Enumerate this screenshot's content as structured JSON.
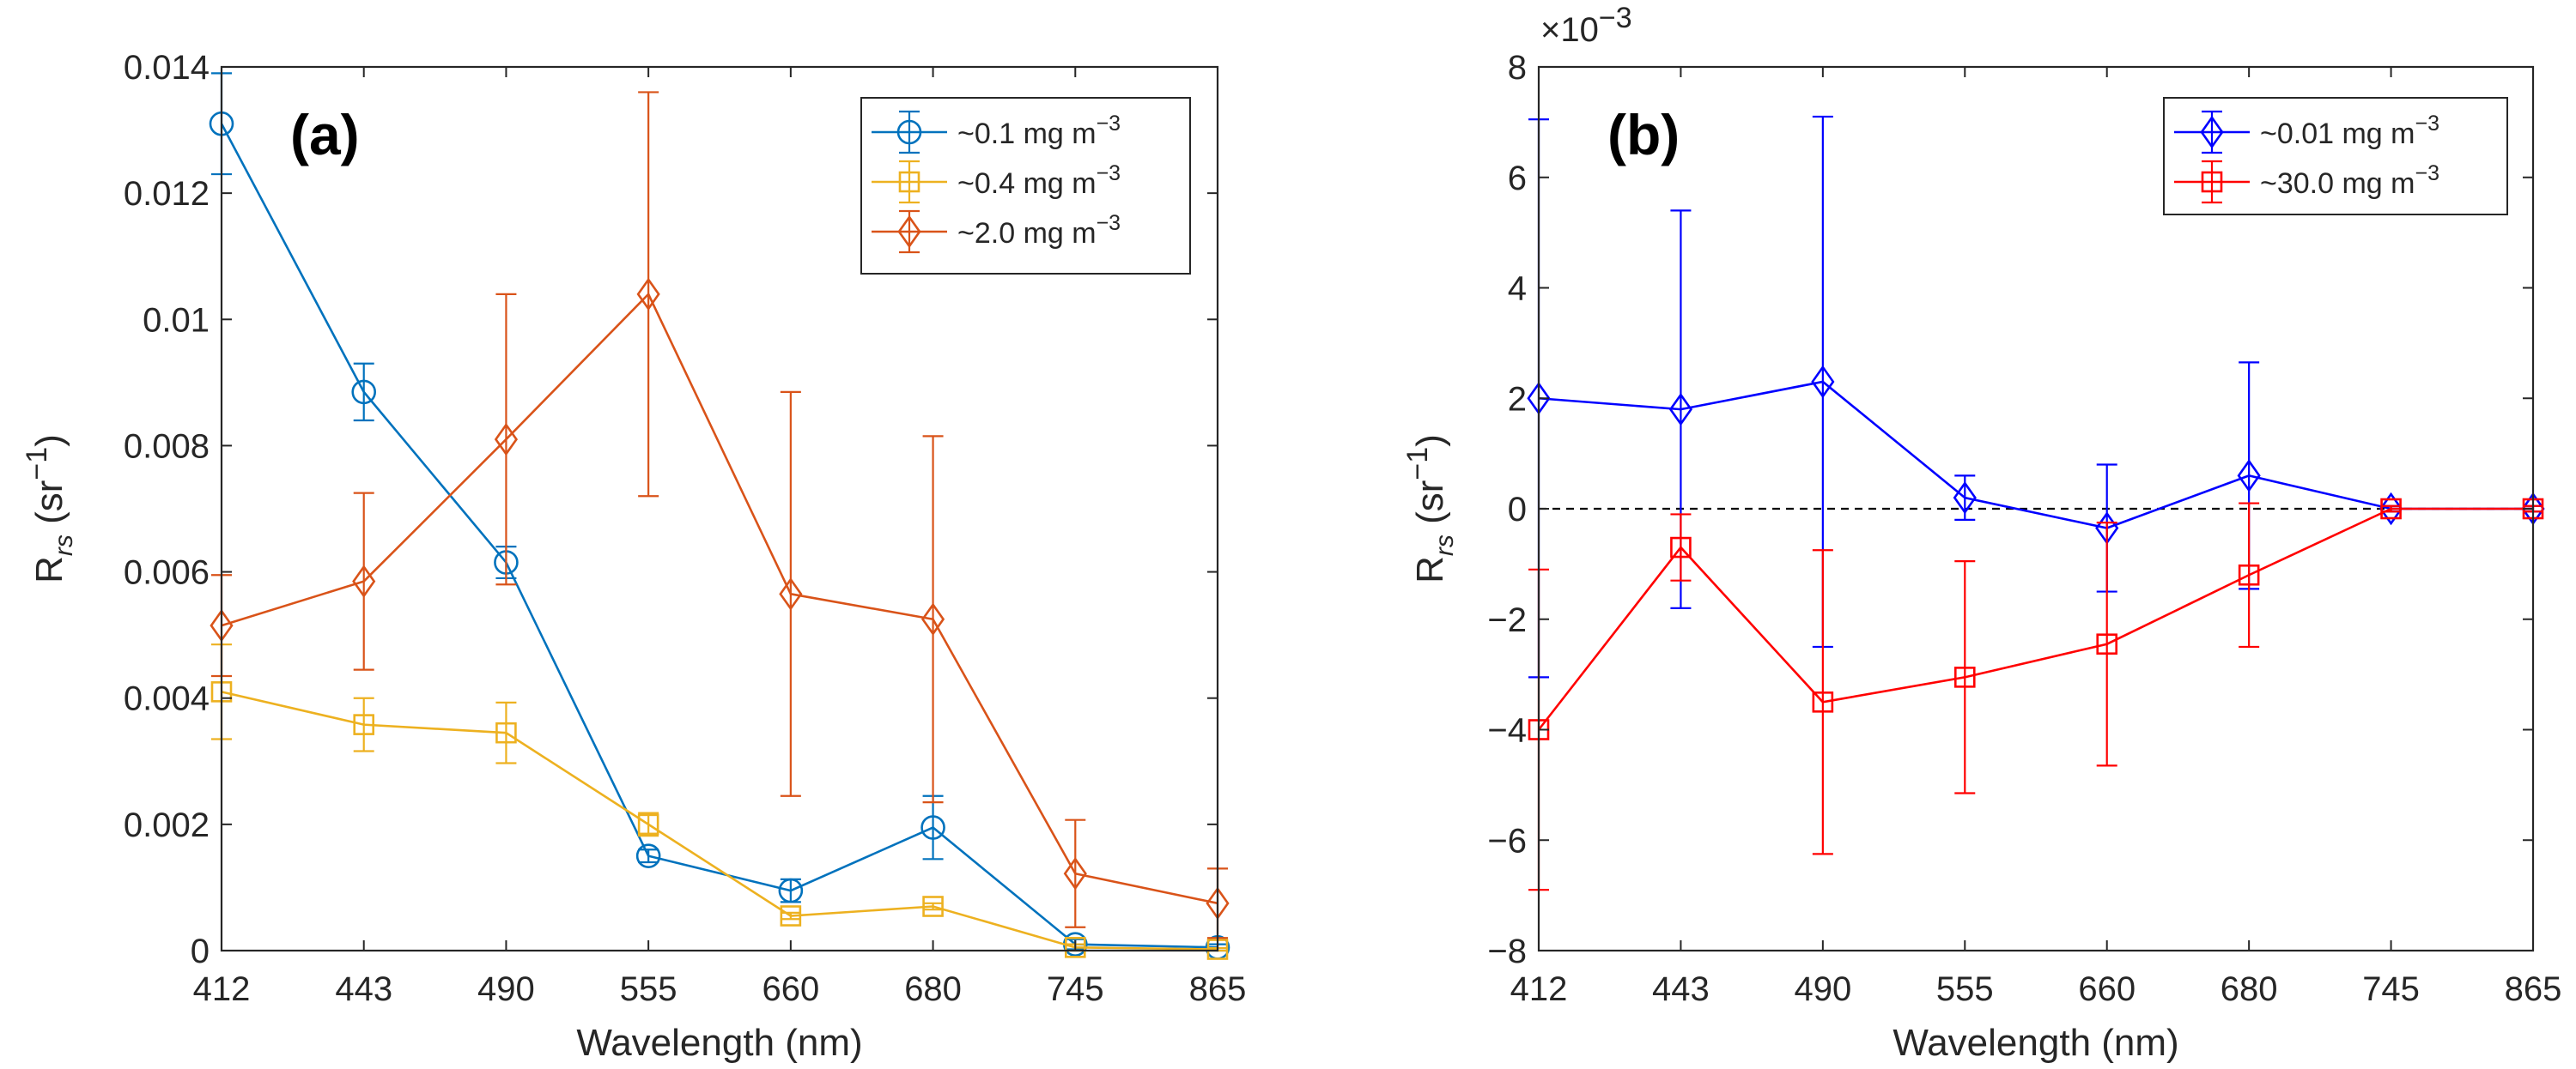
{
  "chart_data": [
    {
      "type": "line",
      "panel_label": "(a)",
      "xlabel": "Wavelength (nm)",
      "ylabel": {
        "base": "R",
        "sub": "rs",
        "unit_open": " (sr",
        "unit_sup": "−1",
        "unit_close": ")"
      },
      "categories": [
        "412",
        "443",
        "490",
        "555",
        "660",
        "680",
        "745",
        "865"
      ],
      "ylim": [
        0,
        0.014
      ],
      "yticks": [
        0,
        0.002,
        0.004,
        0.006,
        0.008,
        0.01,
        0.012,
        0.014
      ],
      "ytick_labels": [
        "0",
        "0.002",
        "0.004",
        "0.006",
        "0.008",
        "0.01",
        "0.012",
        "0.014"
      ],
      "y_multiplier": "",
      "zero_line": false,
      "legend_position": "top-right",
      "series": [
        {
          "name": "~0.1 mg m",
          "sup": "−3",
          "color": "#0072BD",
          "marker": "circle",
          "values": [
            0.0131,
            0.00885,
            0.00615,
            0.0015,
            0.00095,
            0.00195,
            0.0001,
            5e-05
          ],
          "errors": [
            0.0008,
            0.00045,
            0.00025,
            0.0001,
            0.00018,
            0.0005,
            8e-05,
            5e-05
          ]
        },
        {
          "name": "~0.4 mg m",
          "sup": "−3",
          "color": "#EDB120",
          "marker": "square",
          "values": [
            0.0041,
            0.00358,
            0.00345,
            0.002,
            0.00055,
            0.0007,
            5e-05,
            2e-05
          ],
          "errors": [
            0.00075,
            0.00042,
            0.00048,
            0.00018,
            5e-05,
            5e-05,
            5e-05,
            2e-05
          ]
        },
        {
          "name": "~2.0 mg m",
          "sup": "−3",
          "color": "#D95319",
          "marker": "diamond",
          "values": [
            0.00515,
            0.00585,
            0.0081,
            0.0104,
            0.00565,
            0.00525,
            0.00122,
            0.00075
          ],
          "errors": [
            0.0008,
            0.0014,
            0.0023,
            0.0032,
            0.0032,
            0.0029,
            0.00085,
            0.00055
          ]
        }
      ]
    },
    {
      "type": "line",
      "panel_label": "(b)",
      "xlabel": "Wavelength (nm)",
      "ylabel": {
        "base": "R",
        "sub": "rs",
        "unit_open": " (sr",
        "unit_sup": "−1",
        "unit_close": ")"
      },
      "categories": [
        "412",
        "443",
        "490",
        "555",
        "660",
        "680",
        "745",
        "865"
      ],
      "ylim": [
        -8,
        8
      ],
      "yticks": [
        -8,
        -6,
        -4,
        -2,
        0,
        2,
        4,
        6,
        8
      ],
      "ytick_labels": [
        "−8",
        "−6",
        "−4",
        "−2",
        "0",
        "2",
        "4",
        "6",
        "8"
      ],
      "y_multiplier": {
        "base": "×10",
        "sup": "−3"
      },
      "zero_line": true,
      "legend_position": "top-right",
      "series": [
        {
          "name": "~0.01 mg m",
          "sup": "−3",
          "color": "#0000FF",
          "marker": "diamond",
          "values": [
            2.0,
            1.8,
            2.3,
            0.2,
            -0.35,
            0.6,
            0.0,
            0.0
          ],
          "errors": [
            5.05,
            3.6,
            4.8,
            0.4,
            1.15,
            2.05,
            0.05,
            0.05
          ]
        },
        {
          "name": "~30.0 mg m",
          "sup": "−3",
          "color": "#FF0000",
          "marker": "square",
          "values": [
            -4.0,
            -0.7,
            -3.5,
            -3.05,
            -2.45,
            -1.2,
            0.0,
            0.0
          ],
          "errors": [
            2.9,
            0.6,
            2.75,
            2.1,
            2.2,
            1.3,
            0.05,
            0.05
          ]
        }
      ]
    }
  ]
}
